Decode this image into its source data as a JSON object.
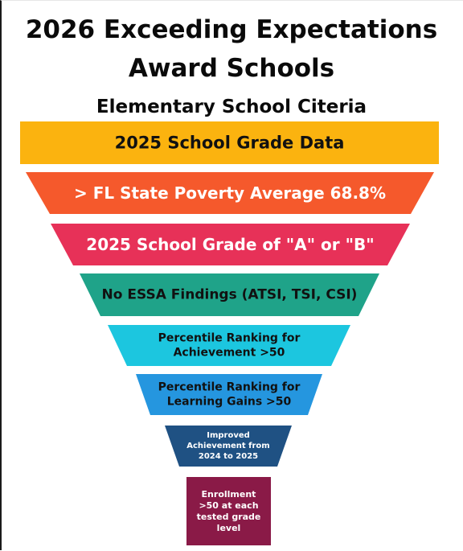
{
  "title_line1": "2026 Exceeding Expectations",
  "title_line2": "Award Schools",
  "subtitle": "Elementary School Citeria",
  "tiers": [
    {
      "lines": [
        "2025 School Grade Data"
      ],
      "color": "#fbb30f",
      "text_color": "#111111"
    },
    {
      "lines": [
        "> FL State Poverty Average 68.8%"
      ],
      "color": "#f5592c",
      "text_color": "#ffffff"
    },
    {
      "lines": [
        "2025 School Grade of \"A\" or \"B\""
      ],
      "color": "#e73158",
      "text_color": "#ffffff"
    },
    {
      "lines": [
        "No ESSA Findings (ATSI, TSI, CSI)"
      ],
      "color": "#1fa389",
      "text_color": "#111111"
    },
    {
      "lines": [
        "Percentile Ranking for",
        "Achievement >50"
      ],
      "color": "#1cc6df",
      "text_color": "#111111"
    },
    {
      "lines": [
        "Percentile Ranking for",
        "Learning Gains >50"
      ],
      "color": "#2596df",
      "text_color": "#111111"
    },
    {
      "lines": [
        "Improved",
        "Achievement from",
        "2024 to 2025"
      ],
      "color": "#1f5183",
      "text_color": "#ffffff"
    },
    {
      "lines": [
        "Enrollment",
        ">50 at each",
        "tested grade",
        "level"
      ],
      "color": "#8a1a47",
      "text_color": "#ffffff"
    }
  ]
}
